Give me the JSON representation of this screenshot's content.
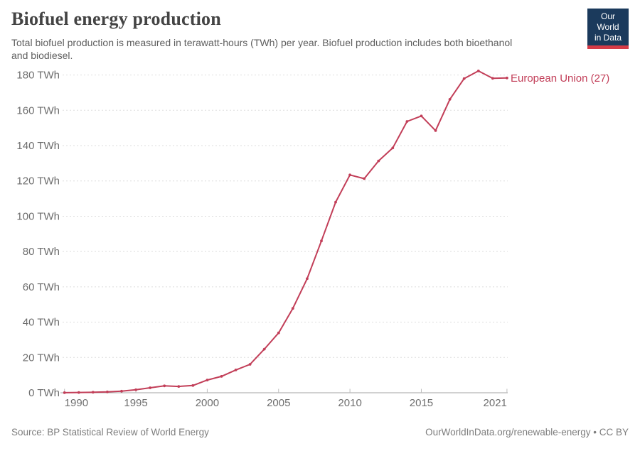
{
  "header": {
    "title": "Biofuel energy production",
    "subtitle_line1": "Total biofuel production is measured in terawatt-hours (TWh) per year. Biofuel production includes both bioethanol",
    "subtitle_line2": "and biodiesel.",
    "logo": {
      "line1": "Our World",
      "line2": "in Data",
      "bg_color": "#1b3a5c",
      "stripe_color": "#d63b47"
    }
  },
  "footer": {
    "source": "Source: BP Statistical Review of World Energy",
    "link": "OurWorldInData.org/renewable-energy • CC BY"
  },
  "chart_data": {
    "type": "line",
    "title": "Biofuel energy production",
    "x": [
      1990,
      1991,
      1992,
      1993,
      1994,
      1995,
      1996,
      1997,
      1998,
      1999,
      2000,
      2001,
      2002,
      2003,
      2004,
      2005,
      2006,
      2007,
      2008,
      2009,
      2010,
      2011,
      2012,
      2013,
      2014,
      2015,
      2016,
      2017,
      2018,
      2019,
      2020,
      2021
    ],
    "series": [
      {
        "name": "European Union (27)",
        "color": "#c23e58",
        "values": [
          0.06,
          0.15,
          0.3,
          0.5,
          0.9,
          1.7,
          2.8,
          3.9,
          3.6,
          4.1,
          7.2,
          9.3,
          12.9,
          16.1,
          24.7,
          33.9,
          47.8,
          64.6,
          86.0,
          108.0,
          123.4,
          121.3,
          131.3,
          138.7,
          153.7,
          156.8,
          148.5,
          166.2,
          178.0,
          182.3,
          178.1,
          178.3
        ]
      }
    ],
    "ylabel_suffix": " TWh",
    "yticks": [
      0,
      20,
      40,
      60,
      80,
      100,
      120,
      140,
      160,
      180
    ],
    "xticks": [
      1990,
      1995,
      2000,
      2005,
      2010,
      2015,
      2021
    ],
    "xlim": [
      1990,
      2021
    ],
    "ylim": [
      0,
      183
    ],
    "grid": "horizontal-dashed",
    "legend_position": "right-of-line-end",
    "axis_color": "#a3a3a3",
    "tick_color": "#bdbdbd",
    "grid_color": "#dedede",
    "tick_label_color": "#6e6e6e"
  }
}
